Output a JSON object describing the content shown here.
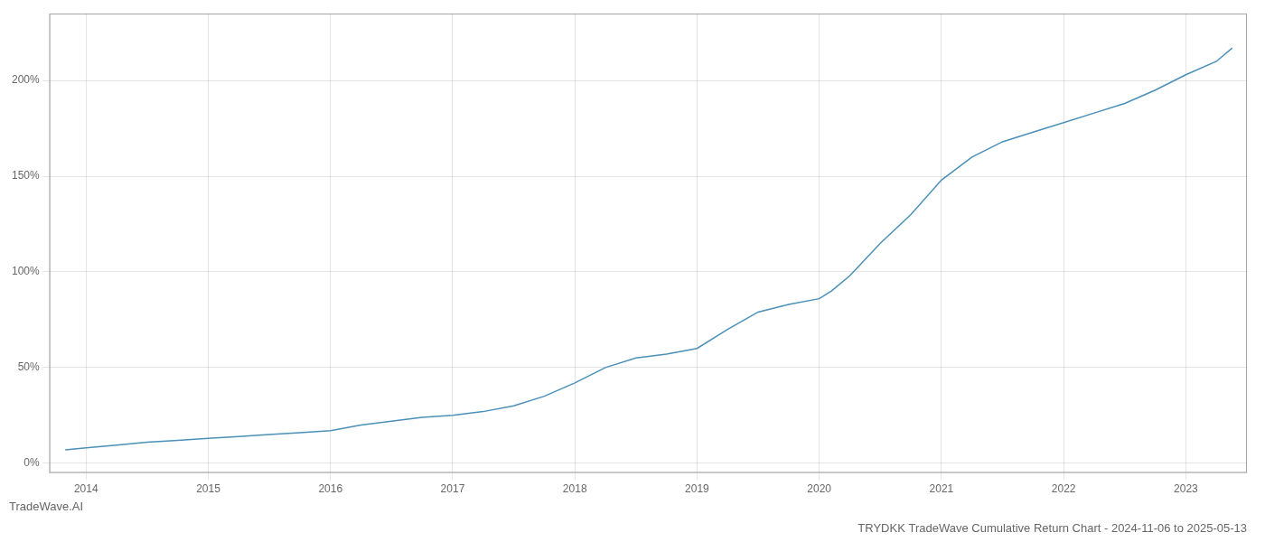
{
  "chart_data": {
    "type": "line",
    "title": "TRYDKK TradeWave Cumulative Return Chart - 2024-11-06 to 2025-05-13",
    "annotations": [
      "TradeWave.AI"
    ],
    "color": "#4a90b8",
    "grid": true,
    "x": [
      2013.83,
      2014.0,
      2014.25,
      2014.5,
      2014.75,
      2015.0,
      2015.25,
      2015.5,
      2015.75,
      2016.0,
      2016.25,
      2016.5,
      2016.75,
      2017.0,
      2017.25,
      2017.5,
      2017.75,
      2018.0,
      2018.25,
      2018.5,
      2018.75,
      2019.0,
      2019.25,
      2019.5,
      2019.75,
      2020.0,
      2020.1,
      2020.25,
      2020.5,
      2020.75,
      2021.0,
      2021.25,
      2021.5,
      2021.75,
      2022.0,
      2022.25,
      2022.5,
      2022.75,
      2023.0,
      2023.25,
      2023.38
    ],
    "values": [
      7,
      8,
      9.5,
      11,
      12,
      13,
      14,
      15,
      16,
      17,
      20,
      22,
      24,
      25,
      27,
      30,
      35,
      42,
      50,
      55,
      57,
      60,
      70,
      79,
      83,
      86,
      90,
      98,
      115,
      130,
      148,
      160,
      168,
      173,
      178,
      183,
      188,
      195,
      203,
      210,
      217
    ],
    "xlim": [
      2013.7,
      2023.5
    ],
    "xticks": [
      2014,
      2015,
      2016,
      2017,
      2018,
      2019,
      2020,
      2021,
      2022,
      2023
    ],
    "ylim": [
      -5,
      235
    ],
    "yticks": [
      {
        "value": 0,
        "label": "0%"
      },
      {
        "value": 50,
        "label": "50%"
      },
      {
        "value": 100,
        "label": "100%"
      },
      {
        "value": 150,
        "label": "150%"
      },
      {
        "value": 200,
        "label": "200%"
      }
    ]
  }
}
